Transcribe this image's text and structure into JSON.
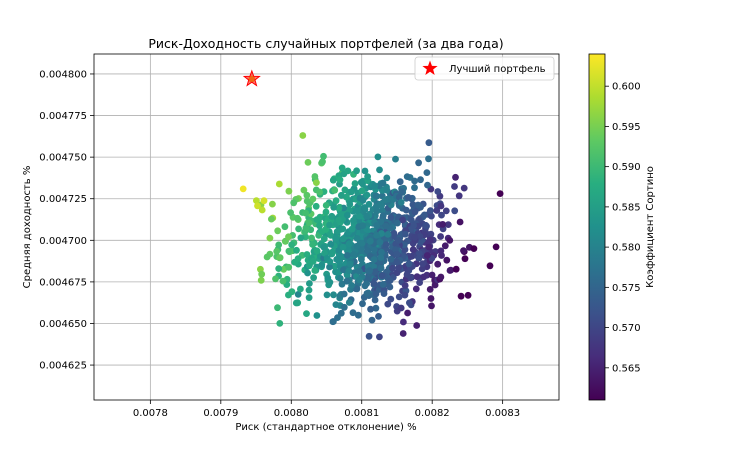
{
  "chart_data": {
    "type": "scatter",
    "title": "Риск-Доходность случайных портфелей (за два года)",
    "xlabel": "Риск (стандартное отклонение) %",
    "ylabel": "Средняя доходность %",
    "xlim": [
      0.00772,
      0.00838
    ],
    "ylim": [
      0.004604,
      0.004812
    ],
    "xticks": [
      "0.0078",
      "0.0079",
      "0.0080",
      "0.0081",
      "0.0082",
      "0.0083"
    ],
    "yticks": [
      "0.004625",
      "0.004650",
      "0.004675",
      "0.004700",
      "0.004725",
      "0.004750",
      "0.004775",
      "0.004800"
    ],
    "grid": true,
    "legend_position": "top-right",
    "colorbar": {
      "label": "Коэффициент Сортино",
      "min": 0.561,
      "max": 0.604,
      "ticks": [
        "0.565",
        "0.570",
        "0.575",
        "0.580",
        "0.585",
        "0.590",
        "0.595",
        "0.600"
      ],
      "colormap": "viridis"
    },
    "best_portfolio": {
      "label": "Лучший портфель",
      "x": 0.007944,
      "y": 0.004797,
      "color": "#ff0000"
    },
    "n_points": 950,
    "center": {
      "x": 0.00811,
      "y": 0.0047
    },
    "spread": {
      "x": 6.2e-05,
      "y": 2.1e-05
    }
  }
}
